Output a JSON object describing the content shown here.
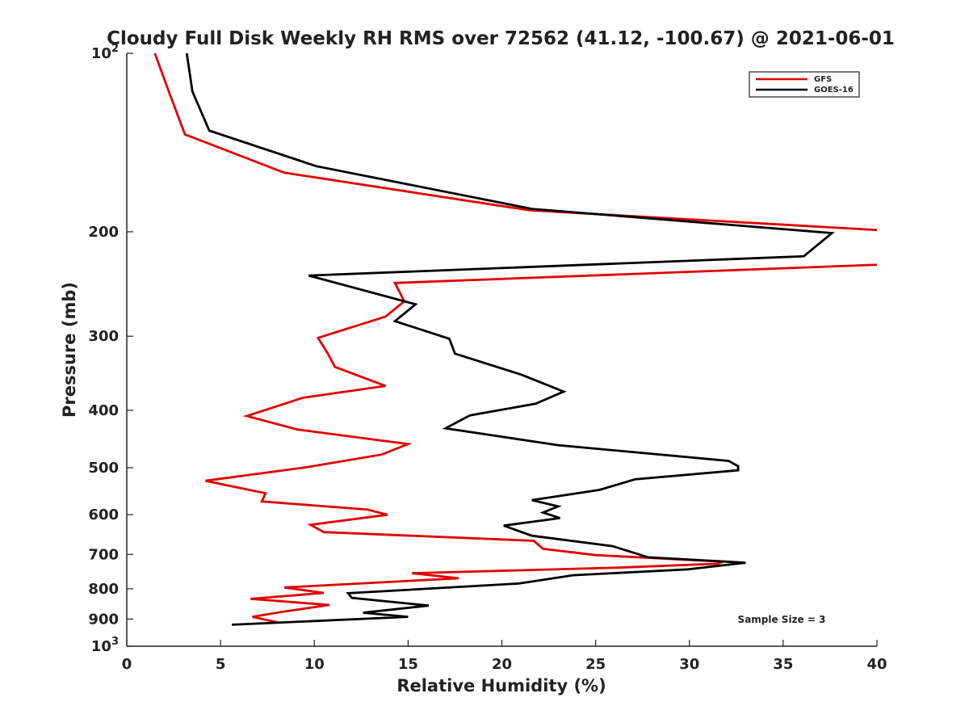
{
  "chart_data": {
    "type": "line",
    "title": "Cloudy Full Disk Weekly RH RMS over 72562 (41.12, -100.67) @ 2021-06-01",
    "xlabel": "Relative Humidity (%)",
    "ylabel": "Pressure (mb)",
    "xlim": [
      0,
      40
    ],
    "ylim": [
      100,
      1000
    ],
    "yscale": "log",
    "y_reversed": true,
    "grid": false,
    "legend_position": "top-right",
    "x_ticks": [
      "0",
      "5",
      "10",
      "15",
      "20",
      "25",
      "30",
      "35",
      "40"
    ],
    "y_ticks": [
      {
        "value": 100,
        "base": "10",
        "exp": "2"
      },
      {
        "value": 200,
        "label": "200"
      },
      {
        "value": 300,
        "label": "300"
      },
      {
        "value": 400,
        "label": "400"
      },
      {
        "value": 500,
        "label": "500"
      },
      {
        "value": 600,
        "label": "600"
      },
      {
        "value": 700,
        "label": "700"
      },
      {
        "value": 800,
        "label": "800"
      },
      {
        "value": 900,
        "label": "900"
      },
      {
        "value": 1000,
        "base": "10",
        "exp": "3"
      }
    ],
    "annotation": "Sample Size = 3",
    "series": [
      {
        "name": "GFS",
        "color": "#e00000",
        "points": [
          [
            1.5,
            100
          ],
          [
            2.2,
            115
          ],
          [
            3.1,
            137
          ],
          [
            8.4,
            159
          ],
          [
            21.5,
            184
          ],
          [
            40.5,
            199
          ],
          [
            40.5,
            227
          ],
          [
            14.3,
            244
          ],
          [
            14.8,
            262
          ],
          [
            13.8,
            278
          ],
          [
            10.2,
            302
          ],
          [
            10.7,
            320
          ],
          [
            11.1,
            338
          ],
          [
            13.8,
            364
          ],
          [
            9.4,
            381
          ],
          [
            6.4,
            409
          ],
          [
            9.1,
            431
          ],
          [
            15.0,
            456
          ],
          [
            13.6,
            475
          ],
          [
            9.6,
            499
          ],
          [
            4.2,
            526
          ],
          [
            7.4,
            552
          ],
          [
            7.2,
            570
          ],
          [
            12.8,
            588
          ],
          [
            13.9,
            600
          ],
          [
            9.8,
            624
          ],
          [
            10.5,
            642
          ],
          [
            21.7,
            664
          ],
          [
            22.2,
            685
          ],
          [
            25.0,
            702
          ],
          [
            31.8,
            720
          ],
          [
            31.5,
            726
          ],
          [
            26.2,
            737
          ],
          [
            15.2,
            753
          ],
          [
            17.7,
            768
          ],
          [
            8.4,
            796
          ],
          [
            10.5,
            813
          ],
          [
            6.6,
            832
          ],
          [
            10.8,
            852
          ],
          [
            8.3,
            875
          ],
          [
            6.7,
            892
          ],
          [
            8.0,
            911
          ]
        ]
      },
      {
        "name": "GOES-16",
        "color": "#000000",
        "points": [
          [
            3.2,
            100
          ],
          [
            3.5,
            116
          ],
          [
            4.4,
            135
          ],
          [
            10.1,
            155
          ],
          [
            21.6,
            183
          ],
          [
            37.6,
            201
          ],
          [
            36.1,
            220
          ],
          [
            9.7,
            237
          ],
          [
            15.4,
            265
          ],
          [
            14.3,
            283
          ],
          [
            17.2,
            303
          ],
          [
            17.5,
            321
          ],
          [
            21.0,
            348
          ],
          [
            23.3,
            372
          ],
          [
            21.8,
            390
          ],
          [
            18.3,
            408
          ],
          [
            17.0,
            429
          ],
          [
            23.0,
            458
          ],
          [
            32.1,
            487
          ],
          [
            32.6,
            497
          ],
          [
            32.6,
            505
          ],
          [
            27.1,
            523
          ],
          [
            25.2,
            545
          ],
          [
            21.6,
            567
          ],
          [
            23.0,
            581
          ],
          [
            22.2,
            595
          ],
          [
            23.1,
            608
          ],
          [
            20.1,
            626
          ],
          [
            21.6,
            651
          ],
          [
            25.9,
            678
          ],
          [
            27.8,
            708
          ],
          [
            33.0,
            723
          ],
          [
            29.9,
            742
          ],
          [
            23.8,
            759
          ],
          [
            20.9,
            784
          ],
          [
            11.8,
            814
          ],
          [
            12.0,
            829
          ],
          [
            16.1,
            854
          ],
          [
            12.6,
            878
          ],
          [
            15.0,
            892
          ],
          [
            5.6,
            920
          ]
        ]
      }
    ]
  }
}
